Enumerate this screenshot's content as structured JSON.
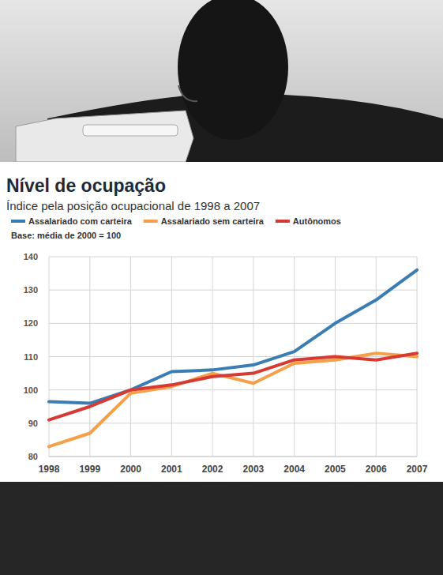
{
  "chart_data": {
    "type": "line",
    "title": "Nível de ocupação",
    "subtitle": "Índice pela posição ocupacional de 1998 a 2007",
    "annotation": "Base: média de 2000 = 100",
    "categories": [
      "1998",
      "1999",
      "2000",
      "2001",
      "2002",
      "2003",
      "2004",
      "2005",
      "2006",
      "2007"
    ],
    "series": [
      {
        "name": "Assalariado com carteira",
        "color": "#3b7db3",
        "values": [
          96.5,
          96,
          100,
          105.5,
          106,
          107.5,
          111.5,
          120,
          127,
          136
        ]
      },
      {
        "name": "Assalariado sem carteira",
        "color": "#f4a04a",
        "values": [
          83,
          87,
          99,
          101,
          105,
          102,
          108,
          109,
          111,
          110
        ]
      },
      {
        "name": "Autônomos",
        "color": "#d63a32",
        "values": [
          91,
          95,
          100,
          101.5,
          104,
          105,
          109,
          110,
          109,
          111
        ]
      }
    ],
    "ylim": [
      80,
      140
    ],
    "yticks": [
      80,
      90,
      100,
      110,
      120,
      130,
      140
    ],
    "grid": true,
    "legend": "top"
  }
}
